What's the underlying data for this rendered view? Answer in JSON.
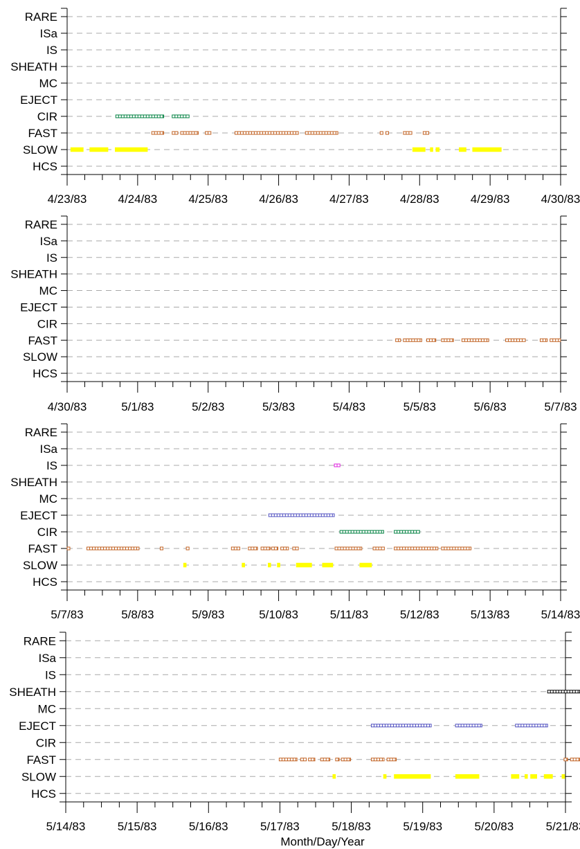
{
  "chart_data": [
    {
      "type": "scatter",
      "title": "",
      "xlabel": "",
      "ylabel": "",
      "categories": [
        "RARE",
        "ISa",
        "IS",
        "SHEATH",
        "MC",
        "EJECT",
        "CIR",
        "FAST",
        "SLOW",
        "HCS"
      ],
      "xlim": [
        0,
        7
      ],
      "xticks": [
        "4/23/83",
        "4/24/83",
        "4/25/83",
        "4/26/83",
        "4/27/83",
        "4/28/83",
        "4/29/83",
        "4/30/83"
      ],
      "grid": true,
      "series": [
        {
          "category": "CIR",
          "color": "#008040",
          "segments": [
            [
              0.69,
              1.37
            ],
            [
              1.49,
              1.73
            ]
          ]
        },
        {
          "category": "FAST",
          "color": "#c06020",
          "segments": [
            [
              1.2,
              1.37
            ],
            [
              1.49,
              1.57
            ],
            [
              1.61,
              1.86
            ],
            [
              1.96,
              2.04
            ],
            [
              2.38,
              3.28
            ],
            [
              3.38,
              3.84
            ],
            [
              4.44,
              4.48
            ],
            [
              4.52,
              4.56
            ],
            [
              4.77,
              4.89
            ],
            [
              5.05,
              5.13
            ]
          ]
        },
        {
          "category": "SLOW",
          "color": "#ffff00",
          "segments": [
            [
              0.05,
              0.23
            ],
            [
              0.32,
              0.58
            ],
            [
              0.68,
              1.14
            ],
            [
              4.9,
              5.08
            ],
            [
              5.15,
              5.18
            ],
            [
              5.23,
              5.28
            ],
            [
              5.56,
              5.66
            ],
            [
              5.75,
              6.16
            ]
          ]
        }
      ]
    },
    {
      "type": "scatter",
      "title": "",
      "xlabel": "",
      "ylabel": "",
      "categories": [
        "RARE",
        "ISa",
        "IS",
        "SHEATH",
        "MC",
        "EJECT",
        "CIR",
        "FAST",
        "SLOW",
        "HCS"
      ],
      "xlim": [
        0,
        7
      ],
      "xticks": [
        "4/30/83",
        "5/1/83",
        "5/2/83",
        "5/3/83",
        "5/4/83",
        "5/5/83",
        "5/6/83",
        "5/7/83"
      ],
      "grid": true,
      "series": [
        {
          "category": "FAST",
          "color": "#c06020",
          "segments": [
            [
              4.66,
              4.73
            ],
            [
              4.77,
              5.03
            ],
            [
              5.1,
              5.23
            ],
            [
              5.31,
              5.48
            ],
            [
              5.6,
              5.98
            ],
            [
              6.22,
              6.5
            ],
            [
              6.71,
              6.81
            ],
            [
              6.85,
              7.0
            ]
          ]
        }
      ]
    },
    {
      "type": "scatter",
      "title": "",
      "xlabel": "",
      "ylabel": "",
      "categories": [
        "RARE",
        "ISa",
        "IS",
        "SHEATH",
        "MC",
        "EJECT",
        "CIR",
        "FAST",
        "SLOW",
        "HCS"
      ],
      "xlim": [
        0,
        7
      ],
      "xticks": [
        "5/7/83",
        "5/8/83",
        "5/9/83",
        "5/10/83",
        "5/11/83",
        "5/12/83",
        "5/13/83",
        "5/14/83"
      ],
      "grid": true,
      "series": [
        {
          "category": "IS",
          "color": "#e020e0",
          "segments": [
            [
              3.79,
              3.87
            ]
          ]
        },
        {
          "category": "EJECT",
          "color": "#5050c0",
          "segments": [
            [
              2.86,
              3.79
            ]
          ]
        },
        {
          "category": "CIR",
          "color": "#008040",
          "segments": [
            [
              3.87,
              4.49
            ],
            [
              4.64,
              5.0
            ]
          ]
        },
        {
          "category": "FAST",
          "color": "#c06020",
          "segments": [
            [
              0.0,
              0.02
            ],
            [
              0.28,
              1.02
            ],
            [
              1.32,
              1.36
            ],
            [
              1.69,
              1.73
            ],
            [
              2.33,
              2.45
            ],
            [
              2.57,
              2.7
            ],
            [
              2.75,
              2.88
            ],
            [
              2.9,
              2.99
            ],
            [
              3.03,
              3.14
            ],
            [
              3.2,
              3.28
            ],
            [
              3.8,
              4.18
            ],
            [
              4.34,
              4.5
            ],
            [
              4.64,
              5.26
            ],
            [
              5.31,
              5.73
            ]
          ]
        },
        {
          "category": "SLOW",
          "color": "#ffff00",
          "segments": [
            [
              1.65,
              1.69
            ],
            [
              2.48,
              2.52
            ],
            [
              2.85,
              2.89
            ],
            [
              2.98,
              3.02
            ],
            [
              3.25,
              3.47
            ],
            [
              3.62,
              3.77
            ],
            [
              4.15,
              4.32
            ]
          ]
        }
      ]
    },
    {
      "type": "scatter",
      "title": "",
      "xlabel": "Month/Day/Year",
      "ylabel": "",
      "categories": [
        "RARE",
        "ISa",
        "IS",
        "SHEATH",
        "MC",
        "EJECT",
        "CIR",
        "FAST",
        "SLOW",
        "HCS"
      ],
      "xlim": [
        0,
        7
      ],
      "xticks": [
        "5/14/83",
        "5/15/83",
        "5/16/83",
        "5/17/83",
        "5/18/83",
        "5/19/83",
        "5/20/83",
        "5/21/83"
      ],
      "grid": true,
      "series": [
        {
          "category": "SHEATH",
          "color": "#000000",
          "segments": [
            [
              6.75,
              7.2
            ]
          ]
        },
        {
          "category": "EJECT",
          "color": "#5050c0",
          "segments": [
            [
              4.28,
              5.12
            ],
            [
              5.46,
              5.83
            ],
            [
              6.3,
              6.75
            ]
          ]
        },
        {
          "category": "FAST",
          "color": "#c06020",
          "segments": [
            [
              2.99,
              3.24
            ],
            [
              3.29,
              3.37
            ],
            [
              3.4,
              3.49
            ],
            [
              3.57,
              3.7
            ],
            [
              3.78,
              3.83
            ],
            [
              3.86,
              3.99
            ],
            [
              4.28,
              4.46
            ],
            [
              4.5,
              4.63
            ],
            [
              6.98,
              7.03
            ],
            [
              7.07,
              7.2
            ]
          ]
        },
        {
          "category": "SLOW",
          "color": "#ffff00",
          "segments": [
            [
              3.74,
              3.78
            ],
            [
              4.45,
              4.49
            ],
            [
              4.6,
              5.11
            ],
            [
              5.46,
              5.79
            ],
            [
              6.24,
              6.35
            ],
            [
              6.43,
              6.47
            ],
            [
              6.51,
              6.6
            ],
            [
              6.7,
              6.82
            ],
            [
              6.95,
              6.99
            ]
          ]
        }
      ]
    }
  ]
}
